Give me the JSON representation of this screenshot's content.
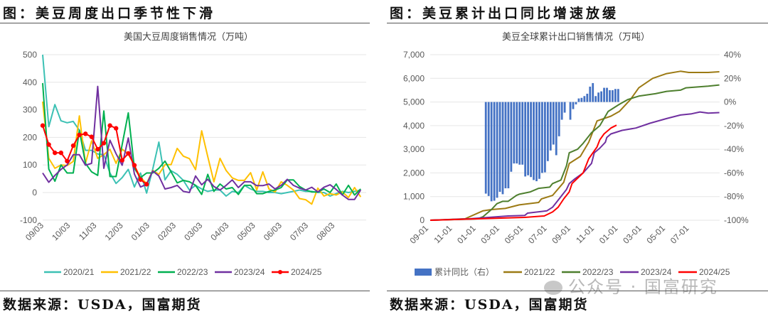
{
  "left_panel": {
    "heading": "图：美豆周度出口季节性下滑",
    "source": "数据来源：USDA，国富期货"
  },
  "right_panel": {
    "heading": "图：美豆累计出口同比增速放缓",
    "source": "数据来源：USDA，国富期货"
  },
  "watermark": "公众号 · 国富研究",
  "chart_data": [
    {
      "type": "line",
      "title": "美国大豆周度销售情况（万吨）",
      "ylabel": "万吨",
      "ylim": [
        -100,
        500
      ],
      "yticks": [
        "500",
        "400",
        "300",
        "200",
        "100",
        "0",
        "-100"
      ],
      "ytick_values": [
        500,
        400,
        300,
        200,
        100,
        0,
        -100
      ],
      "xtick_labels": [
        "09/03",
        "10/03",
        "11/03",
        "12/03",
        "01/03",
        "02/03",
        "03/03",
        "04/03",
        "05/03",
        "06/03",
        "07/03",
        "08/03"
      ],
      "x_unit": "week index from 09/03",
      "grid": true,
      "legend_position": "bottom",
      "series": [
        {
          "name": "2020/21",
          "color": "#3CC1B4",
          "markers": false,
          "values": [
            500,
            239,
            319,
            260,
            253,
            258,
            226,
            153,
            153,
            140,
            137,
            71,
            33,
            54,
            84,
            20,
            71,
            -2,
            85,
            183,
            46,
            79,
            66,
            44,
            9,
            26,
            13,
            4,
            9,
            9,
            -13,
            4,
            0,
            26,
            13,
            4,
            4,
            0,
            0,
            -4,
            0,
            4,
            9,
            4,
            4,
            0,
            0,
            -13,
            -4,
            4,
            0,
            4,
            9
          ]
        },
        {
          "name": "2021/22",
          "color": "#FFC000",
          "markers": false,
          "values": [
            330,
            124,
            88,
            100,
            98,
            113,
            278,
            106,
            188,
            124,
            137,
            157,
            106,
            157,
            140,
            98,
            54,
            33,
            80,
            66,
            101,
            101,
            160,
            132,
            123,
            83,
            224,
            130,
            39,
            124,
            80,
            53,
            44,
            44,
            72,
            9,
            75,
            13,
            2,
            39,
            26,
            9,
            -22,
            -26,
            -42,
            16,
            -13,
            -4,
            -9,
            2,
            -18,
            18,
            -16
          ]
        },
        {
          "name": "2022/23",
          "color": "#00B050",
          "markers": false,
          "values": [
            397,
            85,
            41,
            100,
            71,
            71,
            226,
            106,
            75,
            62,
            296,
            58,
            58,
            174,
            289,
            88,
            54,
            71,
            71,
            88,
            114,
            75,
            35,
            44,
            39,
            26,
            -7,
            66,
            4,
            31,
            13,
            18,
            -7,
            26,
            26,
            -4,
            -4,
            4,
            9,
            18,
            46,
            46,
            22,
            9,
            2,
            2,
            13,
            0,
            31,
            -9,
            26,
            -9,
            13
          ]
        },
        {
          "name": "2023/24",
          "color": "#7030A0",
          "markers": false,
          "values": [
            71,
            37,
            62,
            84,
            100,
            137,
            137,
            99,
            106,
            385,
            88,
            190,
            141,
            99,
            198,
            67,
            20,
            30,
            78,
            60,
            13,
            18,
            26,
            4,
            0,
            60,
            28,
            48,
            22,
            9,
            26,
            46,
            18,
            39,
            39,
            25,
            25,
            31,
            13,
            26,
            48,
            26,
            16,
            9,
            19,
            2,
            19,
            28,
            11,
            -9,
            -25,
            -25,
            9
          ]
        },
        {
          "name": "2024/25",
          "color": "#FF0000",
          "markers": true,
          "values": [
            243,
            174,
            144,
            144,
            114,
            170,
            209,
            213,
            202,
            157,
            179,
            243,
            233,
            117,
            142,
            99,
            47,
            30
          ]
        }
      ]
    },
    {
      "type": "bar+line",
      "title": "美豆全球累计出口销售情况（万吨）",
      "ylim": [
        0,
        7000
      ],
      "yticks": [
        "7,000",
        "6,000",
        "5,000",
        "4,000",
        "3,000",
        "2,000",
        "1,000",
        "0"
      ],
      "ytick_values": [
        7000,
        6000,
        5000,
        4000,
        3000,
        2000,
        1000,
        0
      ],
      "y2lim": [
        -100,
        40
      ],
      "y2ticks": [
        "40%",
        "20%",
        "0%",
        "-20%",
        "-40%",
        "-60%",
        "-80%",
        "-100%"
      ],
      "y2tick_values": [
        40,
        20,
        0,
        -20,
        -40,
        -60,
        -80,
        -100
      ],
      "xtick_labels": [
        "09-01",
        "11-01",
        "01-01",
        "03-01",
        "05-01",
        "07-01",
        "09-01",
        "11-01",
        "01-01",
        "03-01",
        "05-01",
        "07-01"
      ],
      "x_unit": "weeks from first 09-01",
      "grid": true,
      "legend_position": "bottom",
      "bars": {
        "name": "累计同比（右）",
        "color": "#4472C4",
        "start_week": 20,
        "values": [
          -77.5,
          -79.5,
          -84,
          -83.5,
          -81,
          -76,
          -78,
          -73,
          -73,
          -59,
          -52,
          -52,
          -53,
          -53,
          -63,
          -62,
          -63.5,
          -66,
          -67,
          -65,
          -60,
          -59.5,
          -50,
          -41,
          -36,
          -45,
          -29,
          -15,
          -9,
          0,
          -15,
          -6,
          -2,
          3,
          3.5,
          5,
          7,
          13,
          16,
          5,
          8,
          9,
          12,
          12,
          10,
          10,
          11,
          11
        ]
      },
      "series": [
        {
          "name": "2021/22",
          "color": "#9C7A14",
          "points": [
            [
              0,
              0
            ],
            [
              12.5,
              60
            ],
            [
              19,
              400
            ],
            [
              22,
              450
            ],
            [
              27,
              500
            ],
            [
              32,
              650
            ],
            [
              39,
              750
            ],
            [
              40,
              900
            ],
            [
              44,
              1050
            ],
            [
              48,
              1600
            ],
            [
              50,
              2400
            ],
            [
              54,
              2700
            ],
            [
              55,
              2900
            ],
            [
              57,
              3300
            ],
            [
              60,
              4200
            ],
            [
              65,
              4400
            ],
            [
              68,
              4600
            ],
            [
              72,
              5100
            ],
            [
              75,
              5600
            ],
            [
              80,
              6000
            ],
            [
              85,
              6200
            ],
            [
              90,
              6300
            ],
            [
              93,
              6250
            ],
            [
              100,
              6250
            ],
            [
              104,
              6280
            ]
          ]
        },
        {
          "name": "2022/23",
          "color": "#4E7F2E",
          "points": [
            [
              0,
              0
            ],
            [
              17,
              60
            ],
            [
              19,
              150
            ],
            [
              22,
              450
            ],
            [
              24,
              700
            ],
            [
              26,
              800
            ],
            [
              28,
              800
            ],
            [
              31,
              1050
            ],
            [
              32,
              1100
            ],
            [
              36,
              1200
            ],
            [
              39,
              1350
            ],
            [
              43,
              1400
            ],
            [
              44,
              1550
            ],
            [
              47,
              1700
            ],
            [
              49,
              2300
            ],
            [
              50,
              2850
            ],
            [
              53,
              3000
            ],
            [
              55,
              3250
            ],
            [
              58,
              3700
            ],
            [
              61,
              4000
            ],
            [
              64,
              4600
            ],
            [
              68,
              4900
            ],
            [
              71,
              5100
            ],
            [
              75,
              5250
            ],
            [
              81,
              5350
            ],
            [
              85,
              5450
            ],
            [
              90,
              5500
            ],
            [
              92,
              5600
            ],
            [
              100,
              5670
            ],
            [
              104,
              5720
            ]
          ]
        },
        {
          "name": "2023/24",
          "color": "#7030A0",
          "points": [
            [
              0,
              0
            ],
            [
              14,
              60
            ],
            [
              21,
              120
            ],
            [
              28,
              180
            ],
            [
              34,
              200
            ],
            [
              35,
              300
            ],
            [
              42,
              400
            ],
            [
              44,
              550
            ],
            [
              46,
              850
            ],
            [
              49,
              1300
            ],
            [
              50,
              1550
            ],
            [
              52,
              1750
            ],
            [
              55,
              2000
            ],
            [
              58,
              2400
            ],
            [
              59,
              2850
            ],
            [
              61,
              3050
            ],
            [
              63,
              3300
            ],
            [
              63.5,
              3500
            ],
            [
              65,
              3650
            ],
            [
              69,
              3800
            ],
            [
              74,
              3900
            ],
            [
              79,
              4100
            ],
            [
              85,
              4300
            ],
            [
              90,
              4450
            ],
            [
              94,
              4500
            ],
            [
              97,
              4580
            ],
            [
              100,
              4530
            ],
            [
              104,
              4550
            ]
          ]
        },
        {
          "name": "2024/25",
          "color": "#FF0000",
          "points": [
            [
              0,
              0
            ],
            [
              17,
              60
            ],
            [
              34,
              120
            ],
            [
              41,
              180
            ],
            [
              44,
              350
            ],
            [
              46,
              550
            ],
            [
              48,
              900
            ],
            [
              50,
              1200
            ],
            [
              51,
              1550
            ],
            [
              55,
              2000
            ],
            [
              57,
              2600
            ],
            [
              60,
              3100
            ],
            [
              61,
              3400
            ],
            [
              62.5,
              3650
            ],
            [
              65,
              3900
            ],
            [
              67,
              4020
            ]
          ]
        }
      ]
    }
  ]
}
